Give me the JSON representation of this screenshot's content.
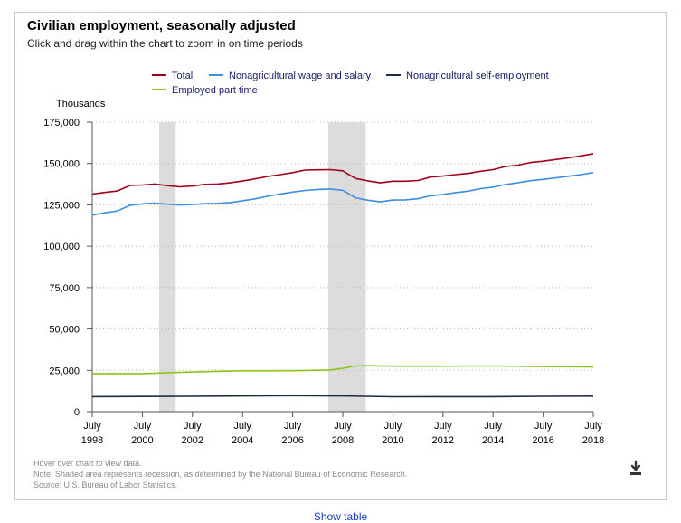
{
  "header": {
    "title": "Civilian employment, seasonally adjusted",
    "subtitle": "Click and drag within the chart to zoom in on time periods"
  },
  "legend": {
    "items": [
      {
        "label": "Total",
        "color": "#a0001e"
      },
      {
        "label": "Nonagricultural wage and salary",
        "color": "#3c8ee0"
      },
      {
        "label": "Nonagricultural self-employment",
        "color": "#1a2b3c"
      },
      {
        "label": "Employed part time",
        "color": "#8fc21a"
      }
    ]
  },
  "footer": {
    "hover_note": "Hover over chart to view data.",
    "shade_note": "Note: Shaded area represents recession, as determined by the National Bureau of Economic Research.",
    "source": "Source: U.S. Bureau of Labor Statistics.",
    "show_table": "Show table",
    "download_icon": "download-icon"
  },
  "chart_data": {
    "type": "line",
    "title": "Civilian employment, seasonally adjusted",
    "ylabel": "Thousands",
    "xlabel": "",
    "ylim": [
      0,
      175000
    ],
    "xlim": [
      1998.5,
      2018.5
    ],
    "y_ticks": [
      0,
      25000,
      50000,
      75000,
      100000,
      125000,
      150000,
      175000
    ],
    "y_tick_labels": [
      "0",
      "25,000",
      "50,000",
      "75,000",
      "100,000",
      "125,000",
      "150,000",
      "175,000"
    ],
    "x_ticks": [
      {
        "month": "July",
        "year": "1998",
        "value": 1998.5
      },
      {
        "month": "July",
        "year": "2000",
        "value": 2000.5
      },
      {
        "month": "July",
        "year": "2002",
        "value": 2002.5
      },
      {
        "month": "July",
        "year": "2004",
        "value": 2004.5
      },
      {
        "month": "July",
        "year": "2006",
        "value": 2006.5
      },
      {
        "month": "July",
        "year": "2008",
        "value": 2008.5
      },
      {
        "month": "July",
        "year": "2010",
        "value": 2010.5
      },
      {
        "month": "July",
        "year": "2012",
        "value": 2012.5
      },
      {
        "month": "July",
        "year": "2014",
        "value": 2014.5
      },
      {
        "month": "July",
        "year": "2016",
        "value": 2016.5
      },
      {
        "month": "July",
        "year": "2018",
        "value": 2018.5
      }
    ],
    "grid": true,
    "legend_position": "top",
    "recessions": [
      {
        "start": 2001.17,
        "end": 2001.83
      },
      {
        "start": 2007.92,
        "end": 2009.42
      }
    ],
    "series": [
      {
        "name": "Total",
        "color": "#a0001e",
        "x": [
          1998.5,
          1999.0,
          1999.5,
          2000.0,
          2000.5,
          2001.0,
          2001.5,
          2002.0,
          2002.5,
          2003.0,
          2003.5,
          2004.0,
          2004.5,
          2005.0,
          2005.5,
          2006.0,
          2006.5,
          2007.0,
          2007.5,
          2008.0,
          2008.5,
          2009.0,
          2009.5,
          2010.0,
          2010.5,
          2011.0,
          2011.5,
          2012.0,
          2012.5,
          2013.0,
          2013.5,
          2014.0,
          2014.5,
          2015.0,
          2015.5,
          2016.0,
          2016.5,
          2017.0,
          2017.5,
          2018.0,
          2018.5
        ],
        "values": [
          131500,
          132500,
          133400,
          136700,
          137000,
          137600,
          136600,
          135900,
          136400,
          137400,
          137600,
          138300,
          139400,
          140700,
          142200,
          143300,
          144500,
          146000,
          146200,
          146300,
          145600,
          141000,
          139500,
          138300,
          139300,
          139300,
          139700,
          141800,
          142400,
          143300,
          144000,
          145300,
          146300,
          148200,
          149000,
          150600,
          151400,
          152400,
          153400,
          154600,
          155900
        ]
      },
      {
        "name": "Nonagricultural wage and salary",
        "color": "#3c8ee0",
        "x": [
          1998.5,
          1999.0,
          1999.5,
          2000.0,
          2000.5,
          2001.0,
          2001.5,
          2002.0,
          2002.5,
          2003.0,
          2003.5,
          2004.0,
          2004.5,
          2005.0,
          2005.5,
          2006.0,
          2006.5,
          2007.0,
          2007.5,
          2008.0,
          2008.5,
          2009.0,
          2009.5,
          2010.0,
          2010.5,
          2011.0,
          2011.5,
          2012.0,
          2012.5,
          2013.0,
          2013.5,
          2014.0,
          2014.5,
          2015.0,
          2015.5,
          2016.0,
          2016.5,
          2017.0,
          2017.5,
          2018.0,
          2018.5
        ],
        "values": [
          118800,
          120200,
          121300,
          124700,
          125600,
          126000,
          125400,
          124900,
          125200,
          125700,
          125900,
          126400,
          127500,
          128600,
          130200,
          131600,
          132700,
          133700,
          134300,
          134600,
          133800,
          129300,
          127800,
          126800,
          127900,
          128000,
          128700,
          130500,
          131300,
          132400,
          133300,
          134800,
          135700,
          137300,
          138400,
          139600,
          140400,
          141300,
          142300,
          143300,
          144500
        ]
      },
      {
        "name": "Nonagricultural self-employment",
        "color": "#1a2b3c",
        "x": [
          1998.5,
          2000.5,
          2002.5,
          2004.5,
          2006.5,
          2008.5,
          2010.5,
          2012.5,
          2014.5,
          2016.5,
          2018.5
        ],
        "values": [
          9100,
          9200,
          9300,
          9500,
          9700,
          9500,
          9000,
          9100,
          9100,
          9300,
          9400
        ]
      },
      {
        "name": "Employed part time",
        "color": "#8fc21a",
        "x": [
          1998.5,
          2000.5,
          2002.5,
          2004.5,
          2006.5,
          2008.0,
          2008.5,
          2009.0,
          2009.5,
          2010.5,
          2012.5,
          2014.5,
          2016.5,
          2017.5,
          2018.5
        ],
        "values": [
          23000,
          23000,
          24000,
          24700,
          24800,
          25200,
          26200,
          27600,
          27800,
          27500,
          27500,
          27600,
          27300,
          27200,
          27000
        ]
      }
    ]
  }
}
